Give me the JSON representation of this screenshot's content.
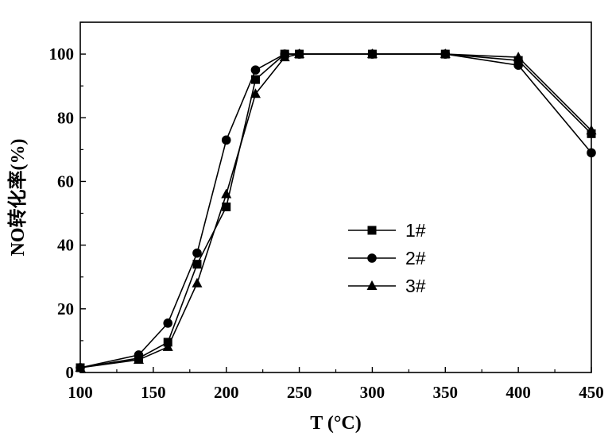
{
  "chart_data": {
    "type": "line",
    "xlabel": "T (°C)",
    "ylabel": "NO转化率(%)",
    "xlim": [
      100,
      450
    ],
    "ylim": [
      0,
      110
    ],
    "x_ticks": [
      100,
      150,
      200,
      250,
      300,
      350,
      400,
      450
    ],
    "y_ticks": [
      0,
      20,
      40,
      60,
      80,
      100
    ],
    "grid": false,
    "legend_position": "center-right",
    "series": [
      {
        "name": "1#",
        "marker": "square",
        "x": [
          100,
          140,
          160,
          180,
          200,
          220,
          240,
          250,
          300,
          350,
          400,
          450
        ],
        "y": [
          1.5,
          4.5,
          9.5,
          34,
          52,
          92,
          100,
          100,
          100,
          100,
          98,
          75
        ]
      },
      {
        "name": "2#",
        "marker": "circle",
        "x": [
          100,
          140,
          160,
          180,
          200,
          220,
          240,
          250,
          300,
          350,
          400,
          450
        ],
        "y": [
          1.5,
          5.5,
          15.5,
          37.5,
          73,
          95,
          100,
          100,
          100,
          100,
          96.5,
          69
        ]
      },
      {
        "name": "3#",
        "marker": "triangle",
        "x": [
          100,
          140,
          160,
          180,
          200,
          220,
          240,
          250,
          300,
          350,
          400,
          450
        ],
        "y": [
          1.5,
          4,
          8,
          28,
          56,
          87.5,
          99,
          100,
          100,
          100,
          99,
          76
        ]
      }
    ],
    "colors": {
      "line": "#000000",
      "background": "#ffffff"
    }
  }
}
